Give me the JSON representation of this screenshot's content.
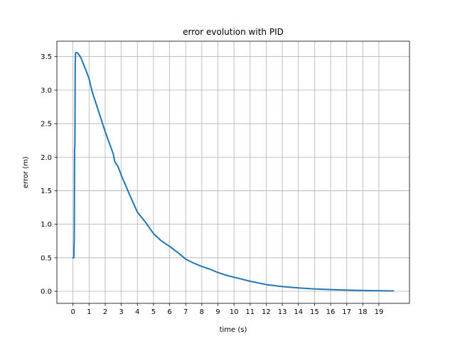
{
  "chart_data": {
    "type": "line",
    "title": "error evolution with PID",
    "xlabel": "time (s)",
    "ylabel": "error (m)",
    "xlim": [
      -1.0,
      20.9
    ],
    "ylim": [
      -0.18,
      3.73
    ],
    "grid": true,
    "line_color": "#1f77b4",
    "grid_color": "#b0b0b0",
    "xticks": [
      0,
      1,
      2,
      3,
      4,
      5,
      6,
      7,
      8,
      9,
      10,
      11,
      12,
      13,
      14,
      15,
      16,
      17,
      18,
      19
    ],
    "xtick_labels": [
      "0",
      "1",
      "2",
      "3",
      "4",
      "5",
      "6",
      "7",
      "8",
      "9",
      "10",
      "11",
      "12",
      "13",
      "14",
      "15",
      "16",
      "17",
      "18",
      "19"
    ],
    "yticks": [
      0.0,
      0.5,
      1.0,
      1.5,
      2.0,
      2.5,
      3.0,
      3.5
    ],
    "ytick_labels": [
      "0.0",
      "0.5",
      "1.0",
      "1.5",
      "2.0",
      "2.5",
      "3.0",
      "3.5"
    ],
    "series": [
      {
        "x": [
          0.0,
          0.05,
          0.08,
          0.1,
          0.12,
          0.14,
          0.16,
          0.18,
          0.2,
          0.25,
          0.3,
          0.4,
          0.5,
          0.6,
          0.8,
          1.0,
          1.2,
          1.5,
          2.0,
          2.5,
          2.6,
          2.8,
          3.0,
          3.5,
          4.0,
          4.5,
          5.0,
          5.5,
          6.0,
          6.5,
          7.0,
          7.5,
          8.0,
          8.5,
          9.0,
          9.5,
          10.0,
          11.0,
          12.0,
          13.0,
          14.0,
          15.0,
          16.0,
          17.0,
          18.0,
          19.0,
          19.9
        ],
        "y": [
          0.5,
          0.5,
          0.8,
          2.1,
          2.2,
          3.4,
          3.55,
          3.56,
          3.56,
          3.56,
          3.55,
          3.52,
          3.48,
          3.42,
          3.3,
          3.17,
          2.97,
          2.75,
          2.38,
          2.05,
          1.93,
          1.86,
          1.73,
          1.45,
          1.18,
          1.03,
          0.86,
          0.75,
          0.67,
          0.58,
          0.48,
          0.42,
          0.37,
          0.33,
          0.28,
          0.24,
          0.21,
          0.15,
          0.1,
          0.07,
          0.05,
          0.035,
          0.025,
          0.017,
          0.012,
          0.008,
          0.005
        ]
      }
    ]
  }
}
